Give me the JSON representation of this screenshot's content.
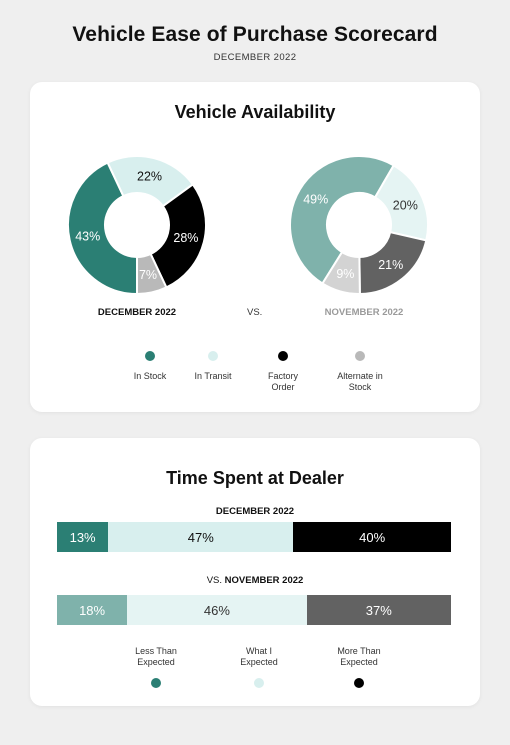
{
  "header": {
    "title": "Vehicle Ease of Purchase Scorecard",
    "subtitle": "DECEMBER 2022"
  },
  "availability": {
    "title": "Vehicle Availability",
    "vs_label": "VS.",
    "current_label": "DECEMBER 2022",
    "previous_label": "NOVEMBER 2022",
    "legend": [
      {
        "label": "In Stock",
        "color": "#2b7f74"
      },
      {
        "label": "In Transit",
        "color": "#d8efee"
      },
      {
        "label": "Factory Order",
        "color": "#000000"
      },
      {
        "label": "Alternate in Stock",
        "color": "#b9b9b9"
      }
    ]
  },
  "time_spent": {
    "title": "Time Spent at Dealer",
    "current_label": "DECEMBER 2022",
    "vs_prefix": "VS.",
    "previous_label": "NOVEMBER 2022",
    "legend": [
      {
        "label": "Less Than Expected",
        "color": "#2b7f74"
      },
      {
        "label": "What I Expected",
        "color": "#d8efee"
      },
      {
        "label": "More Than Expected",
        "color": "#000000"
      }
    ]
  },
  "chart_data": [
    {
      "type": "pie",
      "title": "DECEMBER 2022",
      "categories": [
        "In Stock",
        "In Transit",
        "Factory Order",
        "Alternate in Stock"
      ],
      "values": [
        43,
        22,
        28,
        7
      ],
      "labels": [
        "43%",
        "22%",
        "28%",
        "7%"
      ],
      "colors": [
        "#2b7f74",
        "#d8efee",
        "#000000",
        "#b9b9b9"
      ],
      "label_colors": [
        "#ffffff",
        "#111111",
        "#ffffff",
        "#ffffff"
      ]
    },
    {
      "type": "pie",
      "title": "NOVEMBER 2022",
      "categories": [
        "In Stock",
        "In Transit",
        "Factory Order",
        "Alternate in Stock"
      ],
      "values": [
        49,
        20,
        21,
        9
      ],
      "labels": [
        "49%",
        "20%",
        "21%",
        "9%"
      ],
      "colors": [
        "#7fb2ab",
        "#e5f4f3",
        "#626262",
        "#d3d3d3"
      ],
      "label_colors": [
        "#ffffff",
        "#333333",
        "#ffffff",
        "#ffffff"
      ]
    },
    {
      "type": "bar",
      "title": "DECEMBER 2022",
      "categories": [
        "Less Than Expected",
        "What I Expected",
        "More Than Expected"
      ],
      "values": [
        13,
        47,
        40
      ],
      "labels": [
        "13%",
        "47%",
        "40%"
      ],
      "colors": [
        "#2b7f74",
        "#d8efee",
        "#000000"
      ],
      "label_colors": [
        "#ffffff",
        "#111111",
        "#ffffff"
      ]
    },
    {
      "type": "bar",
      "title": "NOVEMBER 2022",
      "categories": [
        "Less Than Expected",
        "What I Expected",
        "More Than Expected"
      ],
      "values": [
        18,
        46,
        37
      ],
      "labels": [
        "18%",
        "46%",
        "37%"
      ],
      "colors": [
        "#7fb2ab",
        "#e5f4f3",
        "#626262"
      ],
      "label_colors": [
        "#ffffff",
        "#333333",
        "#ffffff"
      ]
    }
  ]
}
